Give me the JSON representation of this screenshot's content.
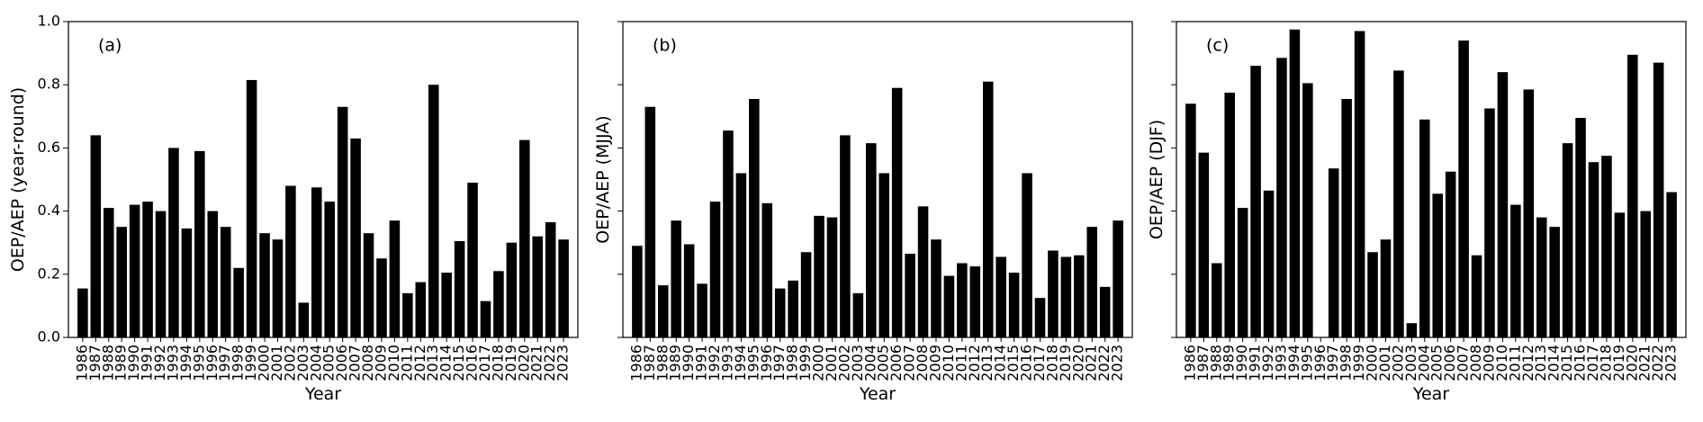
{
  "chart_data": [
    {
      "type": "bar",
      "panel_label": "(a)",
      "xlabel": "Year",
      "ylabel": "OEP/AEP (year-round)",
      "color": "#000000",
      "categories": [
        "1986",
        "1987",
        "1988",
        "1989",
        "1990",
        "1991",
        "1992",
        "1993",
        "1994",
        "1995",
        "1996",
        "1997",
        "1998",
        "1999",
        "2000",
        "2001",
        "2002",
        "2003",
        "2004",
        "2005",
        "2006",
        "2007",
        "2008",
        "2009",
        "2010",
        "2011",
        "2012",
        "2013",
        "2014",
        "2015",
        "2016",
        "2017",
        "2018",
        "2019",
        "2020",
        "2021",
        "2022",
        "2023"
      ],
      "values": [
        0.155,
        0.64,
        0.41,
        0.35,
        0.42,
        0.43,
        0.4,
        0.6,
        0.345,
        0.59,
        0.4,
        0.35,
        0.22,
        0.815,
        0.33,
        0.31,
        0.48,
        0.11,
        0.475,
        0.43,
        0.73,
        0.63,
        0.33,
        0.25,
        0.37,
        0.14,
        0.175,
        0.8,
        0.205,
        0.305,
        0.49,
        0.115,
        0.21,
        0.3,
        0.625,
        0.32,
        0.365,
        0.31
      ],
      "ylim": [
        0,
        1.0
      ],
      "yticks": [
        {
          "value": 0,
          "label": "0.0"
        },
        0.2,
        0.4,
        0.6,
        0.8,
        {
          "value": 1,
          "label": "1.0"
        }
      ],
      "show_ytick_labels": true
    },
    {
      "type": "bar",
      "panel_label": "(b)",
      "xlabel": "Year",
      "ylabel": "OEP/AEP (MJJA)",
      "color": "#000000",
      "categories": [
        "1986",
        "1987",
        "1988",
        "1989",
        "1990",
        "1991",
        "1992",
        "1993",
        "1994",
        "1995",
        "1996",
        "1997",
        "1998",
        "1999",
        "2000",
        "2001",
        "2002",
        "2003",
        "2004",
        "2005",
        "2006",
        "2007",
        "2008",
        "2009",
        "2010",
        "2011",
        "2012",
        "2013",
        "2014",
        "2015",
        "2016",
        "2017",
        "2018",
        "2019",
        "2020",
        "2021",
        "2022",
        "2023"
      ],
      "values": [
        0.29,
        0.73,
        0.165,
        0.37,
        0.295,
        0.17,
        0.43,
        0.655,
        0.52,
        0.755,
        0.425,
        0.155,
        0.18,
        0.27,
        0.385,
        0.38,
        0.64,
        0.14,
        0.615,
        0.52,
        0.79,
        0.265,
        0.415,
        0.31,
        0.195,
        0.235,
        0.225,
        0.81,
        0.255,
        0.205,
        0.52,
        0.125,
        0.275,
        0.255,
        0.26,
        0.35,
        0.16,
        0.37
      ],
      "ylim": [
        0,
        1.0
      ],
      "yticks": [
        0,
        0.2,
        0.4,
        0.6,
        0.8,
        1
      ],
      "show_ytick_labels": false
    },
    {
      "type": "bar",
      "panel_label": "(c)",
      "xlabel": "Year",
      "ylabel": "OEP/AEP (DJF)",
      "color": "#000000",
      "categories": [
        "1986",
        "1987",
        "1988",
        "1989",
        "1990",
        "1991",
        "1992",
        "1993",
        "1994",
        "1995",
        "1996",
        "1997",
        "1998",
        "1999",
        "2000",
        "2001",
        "2002",
        "2003",
        "2004",
        "2005",
        "2006",
        "2007",
        "2008",
        "2009",
        "2010",
        "2011",
        "2012",
        "2013",
        "2014",
        "2015",
        "2016",
        "2017",
        "2018",
        "2019",
        "2020",
        "2021",
        "2022",
        "2023"
      ],
      "values": [
        0.74,
        0.585,
        0.235,
        0.775,
        0.41,
        0.86,
        0.465,
        0.885,
        0.975,
        0.805,
        0,
        0.535,
        0.755,
        0.97,
        0.27,
        0.31,
        0.845,
        0.045,
        0.69,
        0.455,
        0.525,
        0.94,
        0.26,
        0.725,
        0.84,
        0.42,
        0.785,
        0.38,
        0.35,
        0.615,
        0.695,
        0.555,
        0.575,
        0.395,
        0.895,
        0.4,
        0.87,
        0.46
      ],
      "ylim": [
        0,
        1.0
      ],
      "yticks": [
        0,
        0.2,
        0.4,
        0.6,
        0.8,
        1
      ],
      "show_ytick_labels": false
    }
  ]
}
